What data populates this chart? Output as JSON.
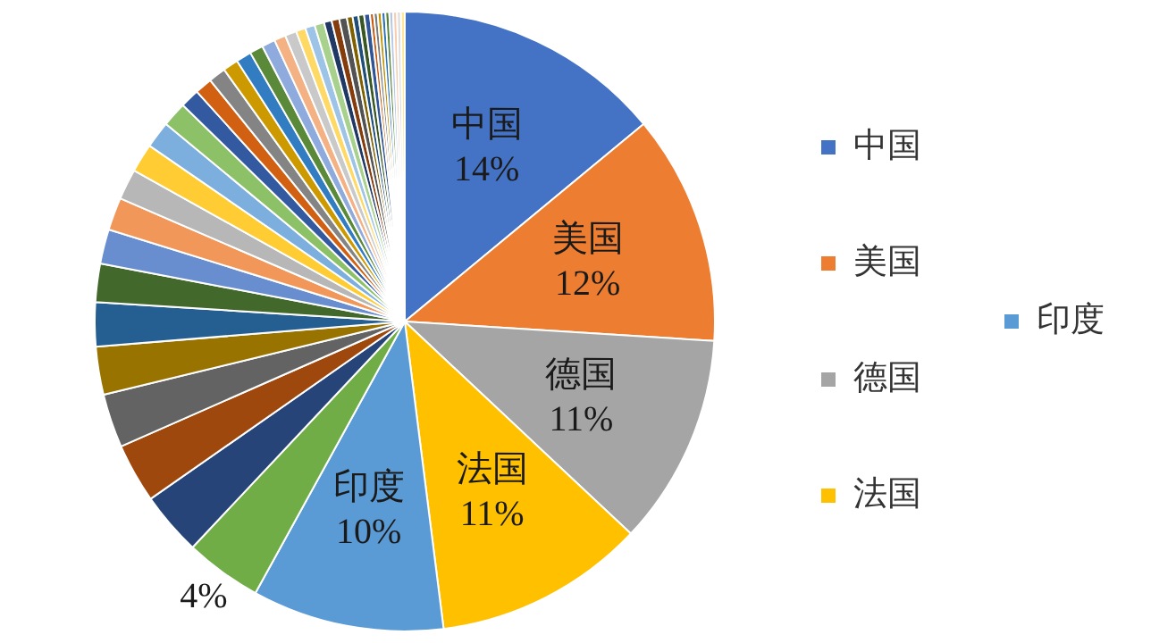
{
  "chart_data": {
    "type": "pie",
    "categories": [
      "中国",
      "美国",
      "德国",
      "法国",
      "印度",
      null,
      null,
      null,
      null,
      null,
      null,
      null,
      null,
      null,
      null,
      null,
      null,
      null,
      null,
      null,
      null,
      null,
      null,
      null,
      null,
      null,
      null,
      null,
      null,
      null,
      null,
      null,
      null,
      null,
      null,
      null,
      null,
      null,
      null,
      null,
      null,
      null,
      null,
      null,
      null,
      null
    ],
    "values": [
      14,
      12,
      11,
      11,
      10,
      4,
      3.3,
      3.1,
      2.8,
      2.5,
      2.3,
      2.0,
      1.8,
      1.7,
      1.6,
      1.5,
      1.4,
      1.3,
      1.0,
      0.9,
      0.9,
      0.8,
      0.8,
      0.7,
      0.7,
      0.6,
      0.6,
      0.5,
      0.5,
      0.5,
      0.4,
      0.4,
      0.4,
      0.3,
      0.3,
      0.3,
      0.3,
      0.2,
      0.2,
      0.2,
      0.2,
      0.2,
      0.2,
      0.2,
      0.2,
      0.2
    ],
    "value_labels": [
      "14%",
      "12%",
      "11%",
      "11%",
      "10%",
      "4%",
      null,
      null,
      null,
      null,
      null,
      null,
      null,
      null,
      null,
      null,
      null,
      null,
      null,
      null,
      null,
      null,
      null,
      null,
      null,
      null,
      null,
      null,
      null,
      null,
      null,
      null,
      null,
      null,
      null,
      null,
      null,
      null,
      null,
      null,
      null,
      null,
      null,
      null,
      null,
      null
    ],
    "colors": [
      "#4472c4",
      "#ed7d31",
      "#a5a5a5",
      "#ffc000",
      "#5b9bd5",
      "#70ad47",
      "#264478",
      "#9e480e",
      "#636363",
      "#997300",
      "#255e91",
      "#43682b",
      "#698ed0",
      "#f1975a",
      "#b7b7b7",
      "#ffcd33",
      "#7cafdd",
      "#8cc168",
      "#335aa1",
      "#d26012",
      "#848484",
      "#cc9a00",
      "#327dc2",
      "#5a8a39",
      "#8faadc",
      "#f4b183",
      "#c9c9c9",
      "#ffd966",
      "#9dc3e6",
      "#a9d18e",
      "#1f3864",
      "#843c0c",
      "#525252",
      "#7f6000",
      "#1f4e79",
      "#385723",
      "#2f5597",
      "#c55a11",
      "#7b7b7b",
      "#bf9000",
      "#2e75b6",
      "#548235",
      "#b4c7e7",
      "#f8cbad",
      "#dbdbdb",
      "#ffe699"
    ],
    "legend": "right"
  }
}
